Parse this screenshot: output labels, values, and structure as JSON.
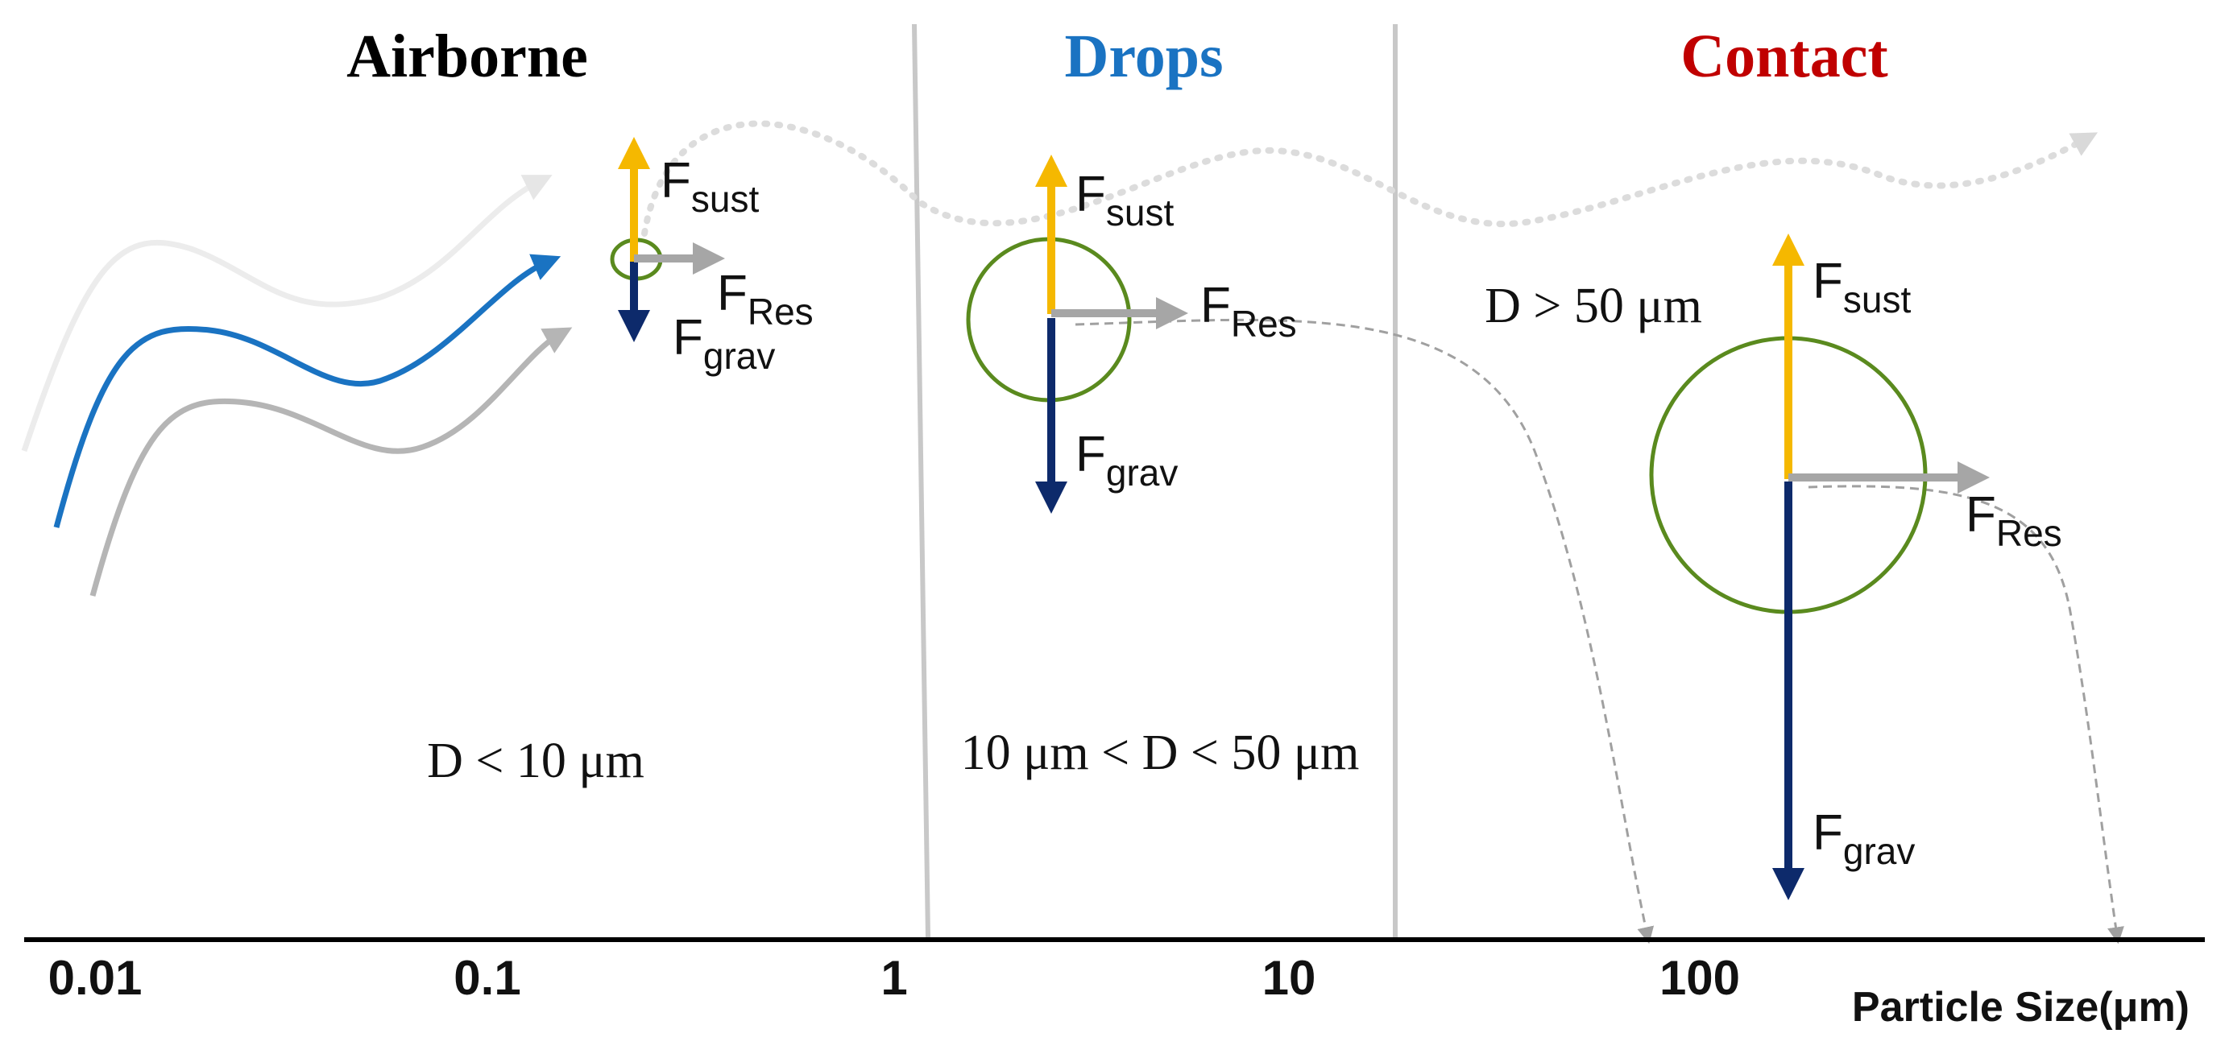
{
  "regions": {
    "airborne": {
      "label": "Airborne",
      "condition": "D < 10 μm",
      "color": "#000000"
    },
    "drops": {
      "label": "Drops",
      "condition": "10 μm < D < 50 μm",
      "color": "#1a73c2"
    },
    "contact": {
      "label": "Contact",
      "condition": "D > 50 μm",
      "color": "#c00000"
    }
  },
  "forces": {
    "sustain": {
      "base": "F",
      "sub": "sust",
      "color": "#f5b800"
    },
    "gravity": {
      "base": "F",
      "sub": "grav",
      "color": "#0d2a6b"
    },
    "resistance": {
      "base": "F",
      "sub": "Res",
      "color": "#a6a6a6"
    }
  },
  "particle_color": "#5a8a1e",
  "axis": {
    "ticks": [
      "0.01",
      "0.1",
      "1",
      "10",
      "100"
    ],
    "title": "Particle Size(μm)"
  }
}
